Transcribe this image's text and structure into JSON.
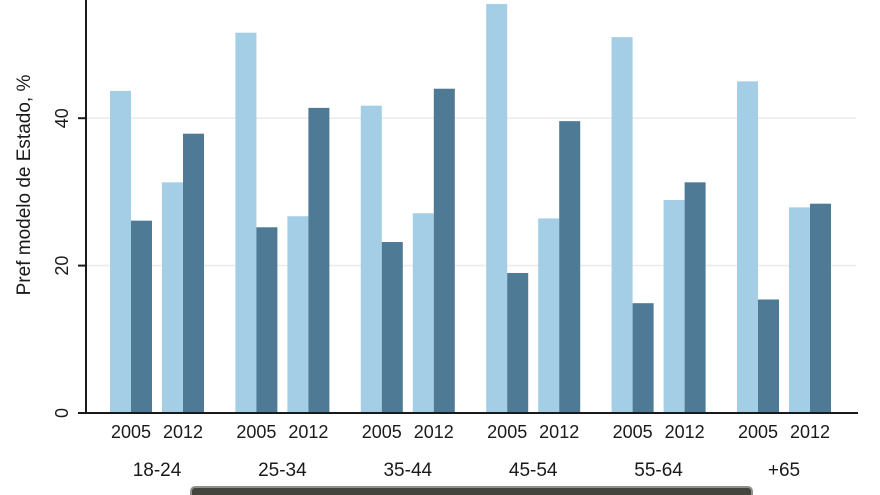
{
  "chart_data": {
    "type": "bar",
    "title": "",
    "xlabel": "",
    "ylabel": "Pref modelo de Estado, %",
    "ylim": [
      0,
      56
    ],
    "yticks": [
      0,
      20,
      40
    ],
    "grid": "horizontal gridlines at 20 and 40",
    "legend_position": "bottom, cut off at screenshot edge",
    "groups": [
      "18-24",
      "25-34",
      "35-44",
      "45-54",
      "55-64",
      "+65"
    ],
    "subgroups": [
      "2005",
      "2012"
    ],
    "series": [
      {
        "name": "light_blue",
        "color": "#a4cde6",
        "values": [
          [
            43.7,
            31.3
          ],
          [
            51.6,
            26.7
          ],
          [
            41.7,
            27.1
          ],
          [
            55.5,
            26.4
          ],
          [
            51.0,
            28.9
          ],
          [
            45.0,
            27.9
          ]
        ]
      },
      {
        "name": "dark_blue",
        "color": "#4e7a96",
        "values": [
          [
            26.1,
            37.9
          ],
          [
            25.2,
            41.4
          ],
          [
            23.2,
            44.0
          ],
          [
            19.0,
            39.6
          ],
          [
            14.9,
            31.3
          ],
          [
            15.4,
            28.4
          ]
        ]
      }
    ]
  },
  "colors": {
    "axis": "#1a1a1a",
    "text": "#1a1a1a",
    "gridline": "#ececec",
    "legend_box_fill": "#45453f",
    "legend_box_border": "#91908a"
  }
}
